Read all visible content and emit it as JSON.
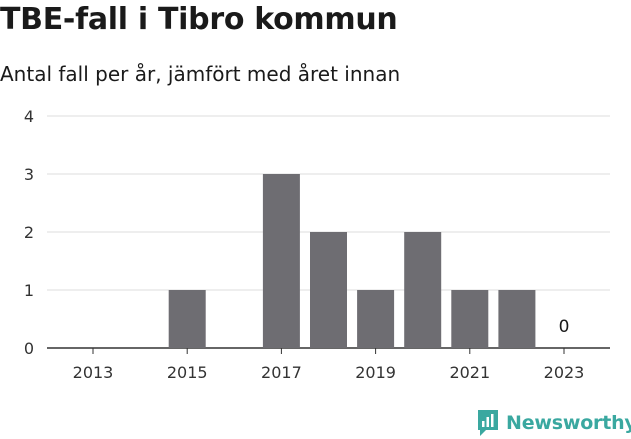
{
  "header": {
    "title": "TBE-fall i Tibro kommun",
    "subtitle": "Antal fall per år, jämfört med året innan"
  },
  "branding": {
    "name": "Newsworthy",
    "logo_icon": "newsworthy-chart-icon",
    "color": "#3aa8a0"
  },
  "chart_data": {
    "type": "bar",
    "categories": [
      "2013",
      "2014",
      "2015",
      "2016",
      "2017",
      "2018",
      "2019",
      "2020",
      "2021",
      "2022",
      "2023"
    ],
    "values": [
      0,
      0,
      1,
      0,
      3,
      2,
      1,
      2,
      1,
      1,
      0
    ],
    "x_tick_labels": [
      "2013",
      "2015",
      "2017",
      "2019",
      "2021",
      "2023"
    ],
    "y_ticks": [
      0,
      1,
      2,
      3,
      4
    ],
    "ylim": [
      0,
      4
    ],
    "data_labels": [
      {
        "category": "2023",
        "text": "0"
      }
    ],
    "grid": true,
    "bar_color": "#6e6d72"
  }
}
